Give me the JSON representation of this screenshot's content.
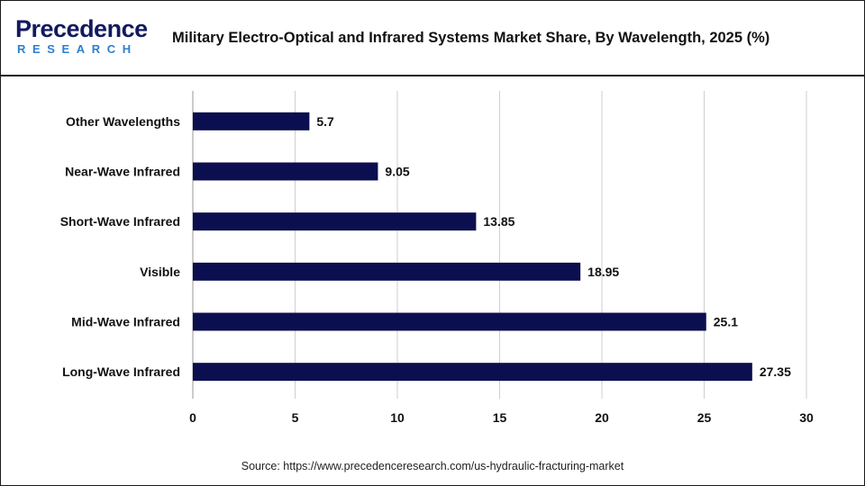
{
  "logo": {
    "main": "Precedence",
    "sub": "RESEARCH"
  },
  "title": "Military Electro-Optical and Infrared Systems Market Share, By Wavelength, 2025 (%)",
  "source": "Source: https://www.precedenceresearch.com/us-hydraulic-fracturing-market",
  "colors": {
    "bar": "#0c0f4f",
    "grid": "#cfcfcf",
    "brand_dark": "#131a5e",
    "brand_light": "#2b7fd0"
  },
  "chart_data": {
    "type": "bar",
    "orientation": "horizontal",
    "categories": [
      "Other Wavelengths",
      "Near-Wave Infrared",
      "Short-Wave Infrared",
      "Visible",
      "Mid-Wave Infrared",
      "Long-Wave Infrared"
    ],
    "values": [
      5.7,
      9.05,
      13.85,
      18.95,
      25.1,
      27.35
    ],
    "value_labels": [
      "5.7",
      "9.05",
      "13.85",
      "18.95",
      "25.1",
      "27.35"
    ],
    "xlim": [
      0,
      30
    ],
    "xticks": [
      "0",
      "5",
      "10",
      "15",
      "20",
      "25",
      "30"
    ],
    "grid": "vertical",
    "xlabel": "",
    "ylabel": ""
  }
}
